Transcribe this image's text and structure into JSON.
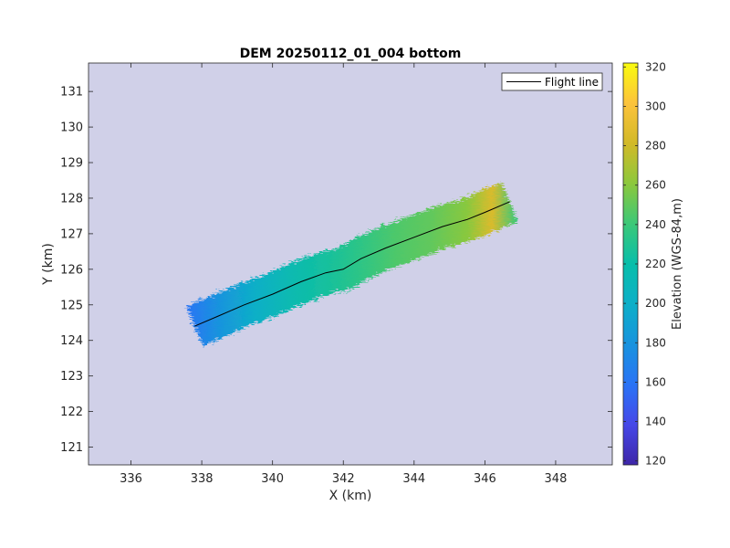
{
  "chart_data": {
    "type": "heatmap",
    "title": "DEM 20250112_01_004 bottom",
    "xlabel": "X (km)",
    "ylabel": "Y (km)",
    "xlim": [
      334.8,
      349.6
    ],
    "ylim": [
      120.5,
      131.8
    ],
    "xticks": [
      336,
      338,
      340,
      342,
      344,
      346,
      348
    ],
    "yticks": [
      121,
      122,
      123,
      124,
      125,
      126,
      127,
      128,
      129,
      130,
      131
    ],
    "grid": false,
    "background_color": "#d0d0e8",
    "colorbar": {
      "label": "Elevation (WGS-84,m)",
      "range": [
        118,
        322
      ],
      "ticks": [
        120,
        140,
        160,
        180,
        200,
        220,
        240,
        260,
        280,
        300,
        320
      ],
      "colormap": "parula"
    },
    "legend": {
      "placement": "top-right",
      "entries": [
        "Flight line"
      ]
    },
    "series": [
      {
        "name": "Flight line",
        "type": "line",
        "color": "#000000",
        "x": [
          337.8,
          338.5,
          339.2,
          340.0,
          340.8,
          341.5,
          342.0,
          342.5,
          343.2,
          344.0,
          344.8,
          345.5,
          346.0,
          346.7
        ],
        "y": [
          124.4,
          124.7,
          125.0,
          125.3,
          125.65,
          125.9,
          126.0,
          126.3,
          126.6,
          126.9,
          127.2,
          127.4,
          127.6,
          127.9
        ]
      }
    ],
    "elevation_profile": {
      "x": [
        337.6,
        338.5,
        339.5,
        340.5,
        341.5,
        342.5,
        343.5,
        344.5,
        345.5,
        346.2,
        346.9
      ],
      "elevation": [
        160,
        180,
        200,
        215,
        225,
        235,
        245,
        250,
        260,
        285,
        240
      ]
    }
  }
}
